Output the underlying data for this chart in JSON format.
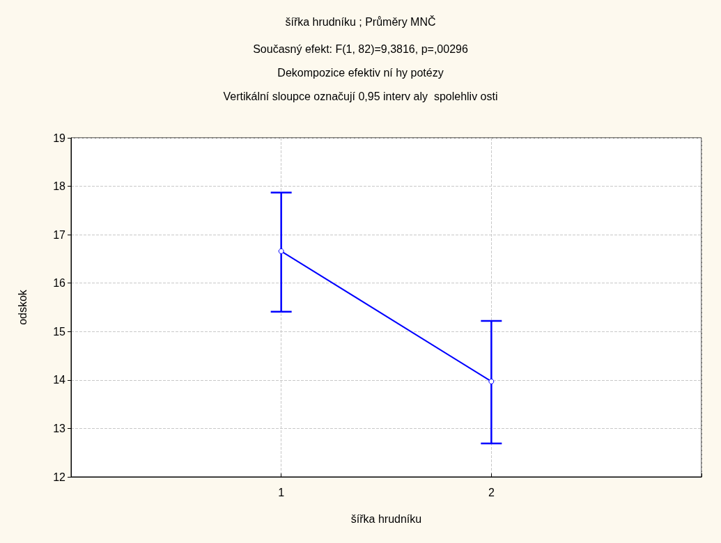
{
  "chart_data": {
    "type": "line",
    "title": "šířka hrudníku ; Průměry MNČ",
    "subtitle": "Současný efekt: F(1, 82)=9,3816, p=,00296\nDekompozice efektiv ní hy potézy\nVertikální sloupce označují 0,95 interv aly  spolehliv osti",
    "xlabel": "šířka hrudníku",
    "ylabel": "odskok",
    "x": [
      1,
      2
    ],
    "xlim": [
      0,
      3
    ],
    "xticks": [
      {
        "value": 0,
        "label": null
      },
      1,
      2,
      {
        "value": 3,
        "label": null
      }
    ],
    "ylim": [
      12,
      19
    ],
    "yticks": [
      12,
      13,
      14,
      15,
      16,
      17,
      18,
      19
    ],
    "series": [
      {
        "color": "#0000ff",
        "values": [
          16.66,
          13.97
        ],
        "errors": [
          [
            15.41,
            17.87
          ],
          [
            12.69,
            15.22
          ]
        ]
      }
    ],
    "marker": "circle",
    "line_style": "solid",
    "grid": true
  }
}
